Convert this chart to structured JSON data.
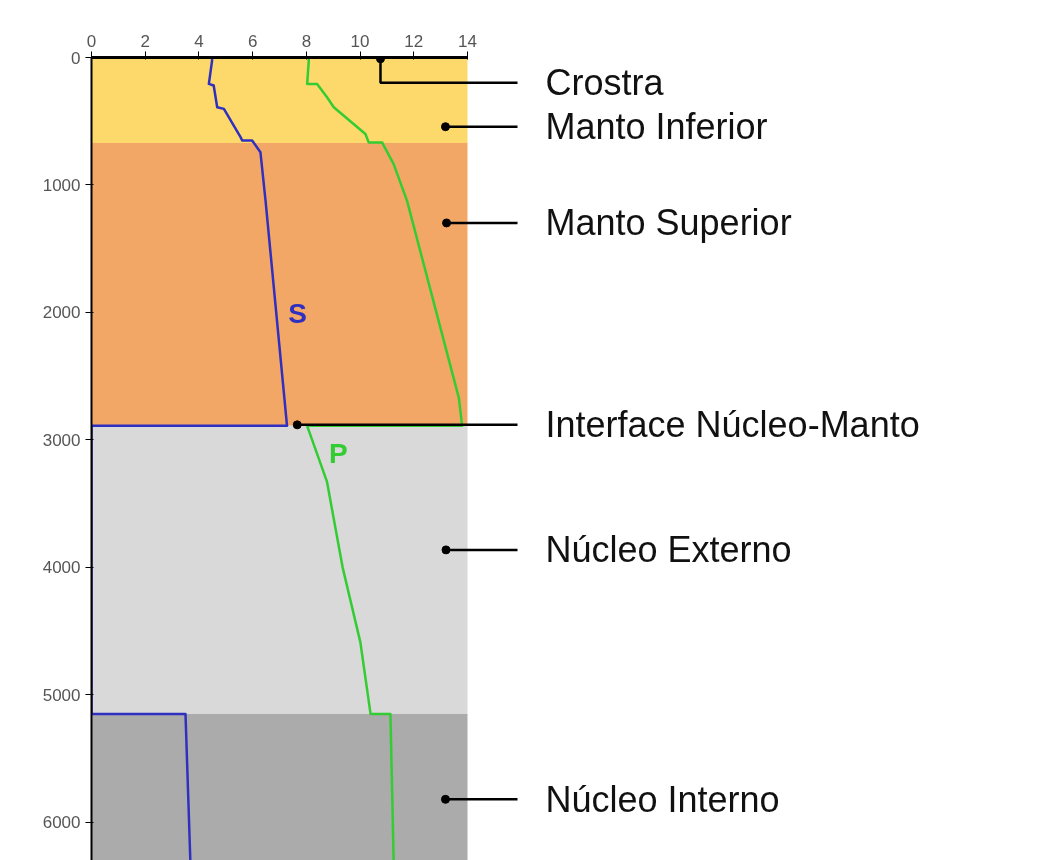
{
  "chart_data": {
    "type": "line",
    "series": [
      {
        "name": "S",
        "color": "#3030c0",
        "x": [
          0,
          4.49,
          4.49,
          4.37,
          4.55,
          4.68,
          4.93,
          5.55,
          5.61,
          5.98,
          6.29,
          6.48,
          7.28,
          0,
          0,
          3.5,
          3.68
        ],
        "values": [
          0,
          0,
          24,
          207,
          220,
          390,
          403,
          625,
          651,
          651,
          743,
          1122,
          2890,
          2890,
          5150,
          5150,
          6300
        ]
      },
      {
        "name": "P",
        "color": "#33cc33",
        "x": [
          1.3,
          8.09,
          8.09,
          8.03,
          8.4,
          8.77,
          9.02,
          10.2,
          10.32,
          10.82,
          11.25,
          11.75,
          13.68,
          13.8,
          8.03,
          8.77,
          9.35,
          10.01,
          10.39,
          11.13,
          11.25
        ],
        "values": [
          0,
          0,
          24,
          207,
          207,
          312,
          390,
          600,
          666,
          666,
          836,
          1125,
          2672,
          2890,
          2890,
          3330,
          4000,
          4587,
          5150,
          5150,
          6300
        ]
      }
    ],
    "xlim": [
      0,
      14
    ],
    "xticks": [
      0,
      2,
      4,
      6,
      8,
      10,
      12,
      14
    ],
    "ylim": [
      6300,
      0
    ],
    "yticks": [
      0,
      1000,
      2000,
      3000,
      4000,
      5000,
      6000
    ],
    "bands": [
      {
        "axis": "y",
        "from": 0,
        "to": 670,
        "label": null,
        "color": "#fcd96a"
      },
      {
        "axis": "y",
        "from": 670,
        "to": 2890,
        "label": null,
        "color": "#f3a766"
      },
      {
        "axis": "y",
        "from": 2890,
        "to": 5150,
        "label": null,
        "color": "#d9d9d9"
      },
      {
        "axis": "y",
        "from": 5150,
        "to": 6300,
        "label": null,
        "color": "#ababab"
      }
    ],
    "annotations": [
      {
        "text": "Crostra",
        "x": 10.76,
        "y": 10
      },
      {
        "text": "Manto Inferior",
        "x": 13.18,
        "y": 543
      },
      {
        "text": "Manto Superior",
        "x": 13.22,
        "y": 1298
      },
      {
        "text": "Interface Núcleo-Manto",
        "x": 7.66,
        "y": 2882
      },
      {
        "text": "Núcleo Externo",
        "x": 13.2,
        "y": 3863
      },
      {
        "text": "Núcleo Interno",
        "x": 13.18,
        "y": 5820
      }
    ]
  }
}
